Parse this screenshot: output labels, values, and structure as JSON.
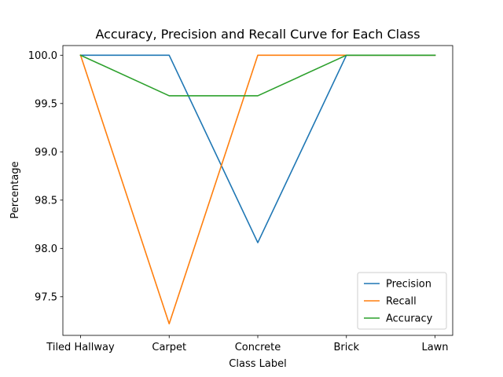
{
  "chart_data": {
    "type": "line",
    "title": "Accuracy, Precision and Recall Curve for Each Class",
    "xlabel": "Class Label",
    "ylabel": "Percentage",
    "categories": [
      "Tiled Hallway",
      "Carpet",
      "Concrete",
      "Brick",
      "Lawn"
    ],
    "ylim": [
      97.1,
      100.1
    ],
    "yticks": [
      97.5,
      98.0,
      98.5,
      99.0,
      99.5,
      100.0
    ],
    "ytick_labels": [
      "97.5",
      "98.0",
      "98.5",
      "99.0",
      "99.5",
      "100.0"
    ],
    "grid": false,
    "legend_position": "lower-right",
    "series": [
      {
        "name": "Precision",
        "color": "#1f77b4",
        "values": [
          100.0,
          100.0,
          98.06,
          100.0,
          100.0
        ]
      },
      {
        "name": "Recall",
        "color": "#ff7f0e",
        "values": [
          100.0,
          97.22,
          100.0,
          100.0,
          100.0
        ]
      },
      {
        "name": "Accuracy",
        "color": "#2ca02c",
        "values": [
          100.0,
          99.58,
          99.58,
          100.0,
          100.0
        ]
      }
    ]
  }
}
